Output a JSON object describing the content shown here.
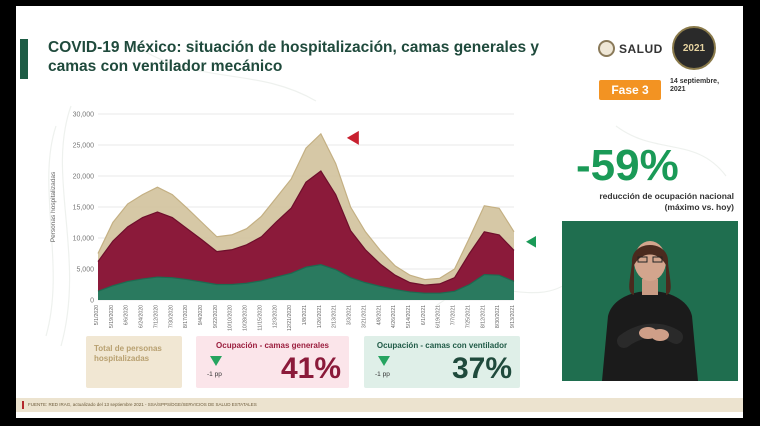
{
  "title": "COVID-19 México: situación de hospitalización, camas generales y camas con ventilador mecánico",
  "brand": {
    "salud": "SALUD",
    "anio_logo": "2021"
  },
  "phase": "Fase 3",
  "date": "14 septiembre, 2021",
  "big_stat": {
    "value": "-59%",
    "description": "reducción de ocupación nacional (máximo vs. hoy)"
  },
  "cards": {
    "total": {
      "label": "Total de personas hospitalizadas"
    },
    "general": {
      "title": "Ocupación - camas generales",
      "change": "-1 pp",
      "value": "41%"
    },
    "ventilator": {
      "title": "Ocupación - camas con ventilador",
      "change": "-1 pp",
      "value": "37%"
    }
  },
  "footer": "FUENTE: RED IRAG, actualizado del 13 septiembre 2021 - SSA/SPPS/DGE/SERVICIOS DE SALUD ESTATALES",
  "colors": {
    "total": "#d2c29c",
    "general": "#8b1a3a",
    "ventilator": "#2a7a5f",
    "accent_green": "#1a9a57",
    "phase_orange": "#f39322"
  },
  "chart_data": {
    "type": "area",
    "ylabel": "Personas hospitalizadas",
    "ylim": [
      0,
      30000
    ],
    "y_ticks": [
      "0",
      "5,000",
      "10,000",
      "15,000",
      "20,000",
      "25,000",
      "30,000"
    ],
    "x_ticks": [
      "5/1/2020",
      "5/19/2020",
      "6/6/2020",
      "6/24/2020",
      "7/12/2020",
      "7/30/2020",
      "8/17/2020",
      "9/4/2020",
      "9/22/2020",
      "10/10/2020",
      "10/28/2020",
      "11/15/2020",
      "12/3/2020",
      "12/21/2020",
      "1/8/2021",
      "1/26/2021",
      "2/13/2021",
      "3/3/2021",
      "3/21/2021",
      "4/8/2021",
      "4/26/2021",
      "5/14/2021",
      "6/1/2021",
      "6/19/2021",
      "7/7/2021",
      "7/25/2021",
      "8/12/2021",
      "8/30/2021",
      "9/13/2021"
    ],
    "series": [
      {
        "name": "Total de personas hospitalizadas",
        "values": [
          7500,
          12500,
          15500,
          17000,
          18200,
          17000,
          14800,
          12500,
          10200,
          10500,
          11500,
          13500,
          16500,
          19500,
          24500,
          26800,
          22000,
          15000,
          11000,
          8000,
          5500,
          4000,
          3300,
          3500,
          5000,
          10000,
          15200,
          14800,
          11000
        ]
      },
      {
        "name": "Ocupación - camas generales",
        "values": [
          6200,
          9500,
          11800,
          13300,
          14200,
          13300,
          11500,
          9700,
          7800,
          8100,
          8900,
          10200,
          12600,
          14800,
          19000,
          20800,
          17000,
          11200,
          8100,
          5800,
          4000,
          2800,
          2400,
          2600,
          3600,
          7500,
          11000,
          10500,
          8000
        ]
      },
      {
        "name": "Ocupación - camas con ventilador",
        "values": [
          1400,
          2300,
          3000,
          3400,
          3700,
          3600,
          3300,
          2900,
          2500,
          2500,
          2700,
          3100,
          3700,
          4300,
          5300,
          5700,
          4900,
          3600,
          2800,
          2200,
          1700,
          1300,
          1100,
          1100,
          1400,
          2500,
          4100,
          4000,
          3000
        ]
      }
    ]
  }
}
